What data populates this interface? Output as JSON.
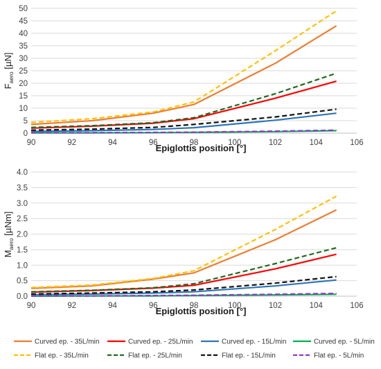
{
  "chart_data": [
    {
      "type": "line",
      "ylabel_main": "F",
      "ylabel_sub": "aero",
      "ylabel_unit": " [µN]",
      "xlabel": "Epiglottis position [°]",
      "xlim": [
        90,
        106
      ],
      "ylim": [
        0,
        50
      ],
      "xticks": [
        90,
        92,
        94,
        96,
        98,
        100,
        102,
        104,
        106
      ],
      "yticks": [
        0,
        5,
        10,
        15,
        20,
        25,
        30,
        35,
        40,
        45,
        50
      ],
      "ytick_decimals": 0,
      "x": [
        90,
        93,
        96,
        98,
        102,
        105
      ],
      "series": [
        {
          "name": "Curved ep. - 35L/min",
          "color": "#ED7D31",
          "dash": false,
          "values": [
            3.5,
            5.0,
            8.0,
            11.5,
            28.0,
            43.0
          ]
        },
        {
          "name": "Curved ep. - 25L/min",
          "color": "#FF0000",
          "dash": false,
          "values": [
            2.0,
            2.8,
            4.0,
            5.8,
            14.0,
            20.8
          ]
        },
        {
          "name": "Curved ep. - 15L/min",
          "color": "#2E75B6",
          "dash": false,
          "values": [
            0.7,
            1.0,
            1.5,
            2.2,
            5.2,
            8.0
          ]
        },
        {
          "name": "Curved ep. - 5L/min",
          "color": "#00B050",
          "dash": false,
          "values": [
            0.1,
            0.1,
            0.2,
            0.3,
            0.6,
            1.0
          ]
        },
        {
          "name": "Flat ep. - 35L/min",
          "color": "#FFC000",
          "dash": true,
          "values": [
            4.3,
            5.8,
            8.5,
            12.5,
            33.0,
            49.0
          ]
        },
        {
          "name": "Flat ep. - 25L/min",
          "color": "#1E6B1E",
          "dash": true,
          "values": [
            2.3,
            3.0,
            4.2,
            6.2,
            15.8,
            24.0
          ]
        },
        {
          "name": "Flat ep. - 15L/min",
          "color": "#111111",
          "dash": true,
          "values": [
            1.2,
            1.6,
            2.3,
            3.5,
            6.5,
            9.6
          ]
        },
        {
          "name": "Flat ep. - 5L/min",
          "color": "#9933CC",
          "dash": true,
          "values": [
            0.2,
            0.2,
            0.3,
            0.4,
            0.8,
            1.2
          ]
        }
      ]
    },
    {
      "type": "line",
      "ylabel_main": "M",
      "ylabel_sub": "aero",
      "ylabel_unit": " [µNm]",
      "xlabel": "Epiglottis position [°]",
      "xlim": [
        90,
        106
      ],
      "ylim": [
        0,
        4
      ],
      "xticks": [
        90,
        92,
        94,
        96,
        98,
        100,
        102,
        104,
        106
      ],
      "yticks": [
        0,
        0.5,
        1,
        1.5,
        2,
        2.5,
        3,
        3.5,
        4
      ],
      "ytick_decimals": 1,
      "x": [
        90,
        93,
        96,
        98,
        102,
        105
      ],
      "series": [
        {
          "name": "Curved ep. - 35L/min",
          "color": "#ED7D31",
          "dash": false,
          "values": [
            0.25,
            0.33,
            0.55,
            0.75,
            1.82,
            2.78
          ]
        },
        {
          "name": "Curved ep. - 25L/min",
          "color": "#FF0000",
          "dash": false,
          "values": [
            0.13,
            0.18,
            0.26,
            0.35,
            0.88,
            1.35
          ]
        },
        {
          "name": "Curved ep. - 15L/min",
          "color": "#2E75B6",
          "dash": false,
          "values": [
            0.05,
            0.07,
            0.1,
            0.14,
            0.33,
            0.52
          ]
        },
        {
          "name": "Curved ep. - 5L/min",
          "color": "#00B050",
          "dash": false,
          "values": [
            0.0,
            0.01,
            0.01,
            0.02,
            0.04,
            0.06
          ]
        },
        {
          "name": "Flat ep. - 35L/min",
          "color": "#FFC000",
          "dash": true,
          "values": [
            0.28,
            0.36,
            0.57,
            0.82,
            2.15,
            3.22
          ]
        },
        {
          "name": "Flat ep. - 25L/min",
          "color": "#1E6B1E",
          "dash": true,
          "values": [
            0.14,
            0.19,
            0.27,
            0.4,
            1.05,
            1.56
          ]
        },
        {
          "name": "Flat ep. - 15L/min",
          "color": "#111111",
          "dash": true,
          "values": [
            0.07,
            0.1,
            0.14,
            0.2,
            0.42,
            0.63
          ]
        },
        {
          "name": "Flat ep. - 5L/min",
          "color": "#9933CC",
          "dash": true,
          "values": [
            0.01,
            0.01,
            0.02,
            0.03,
            0.06,
            0.09
          ]
        }
      ]
    }
  ],
  "legend": [
    {
      "label": "Curved ep. - 35L/min",
      "color": "#ED7D31",
      "dash": false
    },
    {
      "label": "Curved ep. - 25L/min",
      "color": "#FF0000",
      "dash": false
    },
    {
      "label": "Curved ep. - 15L/min",
      "color": "#2E75B6",
      "dash": false
    },
    {
      "label": "Curved ep. - 5L/min",
      "color": "#00B050",
      "dash": false
    },
    {
      "label": "Flat ep. - 35L/min",
      "color": "#FFC000",
      "dash": true
    },
    {
      "label": "Flat ep. - 25L/min",
      "color": "#1E6B1E",
      "dash": true
    },
    {
      "label": "Flat ep. - 15L/min",
      "color": "#111111",
      "dash": true
    },
    {
      "label": "Flat ep. - 5L/min",
      "color": "#9933CC",
      "dash": true
    }
  ]
}
